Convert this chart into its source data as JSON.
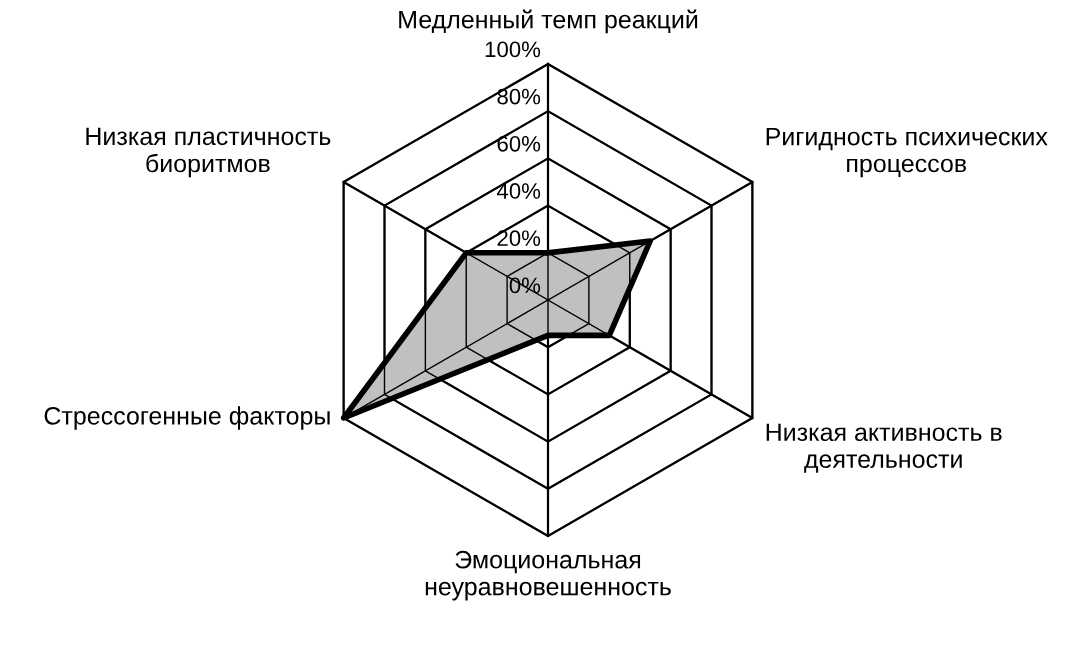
{
  "chart_data": {
    "type": "radar",
    "categories": [
      "Медленный темп реакций",
      "Ригидность психических\nпроцессов",
      "Низкая активность в\nдеятельности",
      "Эмоциональная\nнеуравновешенность",
      "Стрессогенные факторы",
      "Низкая пластичность\nбиоритмов"
    ],
    "series": [
      {
        "color": "#c0c0c0",
        "values": [
          20,
          50,
          30,
          15,
          100,
          40
        ]
      }
    ],
    "ylim": [
      0,
      100
    ],
    "yticks": [
      {
        "value": 0,
        "label": "0%"
      },
      {
        "value": 20,
        "label": "20%"
      },
      {
        "value": 40,
        "label": "40%"
      },
      {
        "value": 60,
        "label": "60%"
      },
      {
        "value": 80,
        "label": "80%"
      },
      {
        "value": 100,
        "label": "100%"
      }
    ],
    "grid": true
  }
}
